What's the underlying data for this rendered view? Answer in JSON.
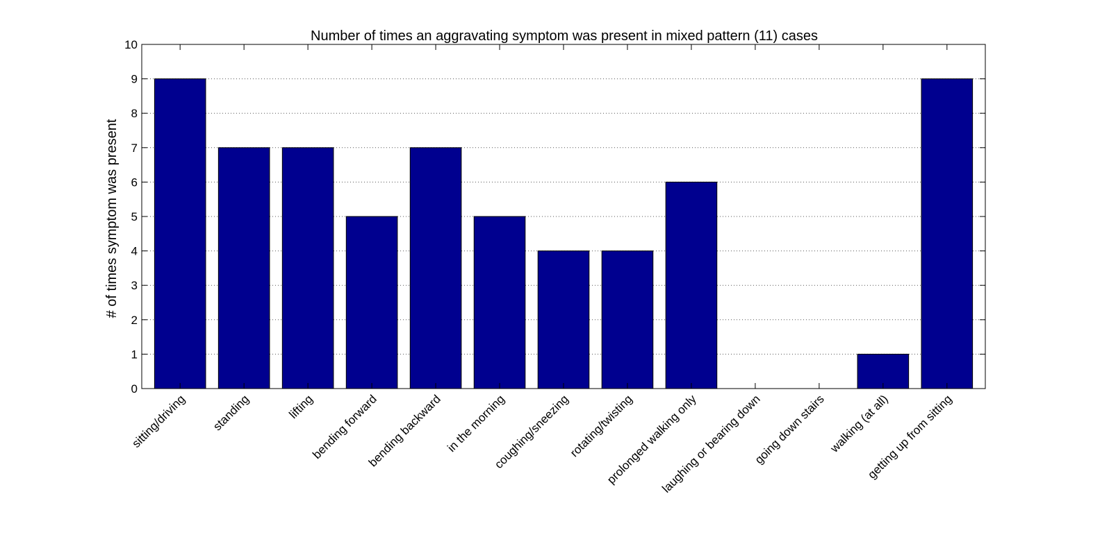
{
  "chart_data": {
    "type": "bar",
    "title": "Number of times an aggravating symptom was present in mixed pattern (11) cases",
    "xlabel": "",
    "ylabel": "# of times symptom was present",
    "categories": [
      "sitting/driving",
      "standing",
      "lifting",
      "bending forward",
      "bending backward",
      "in the morning",
      "coughing/sneezing",
      "rotating/twisting",
      "prolonged walking only",
      "laughing or bearing down",
      "going down stairs",
      "walking (at all)",
      "getting up from sitting"
    ],
    "values": [
      9,
      7,
      7,
      5,
      7,
      5,
      4,
      4,
      6,
      0,
      0,
      1,
      9
    ],
    "ylim": [
      0,
      10
    ],
    "yticks": [
      0,
      1,
      2,
      3,
      4,
      5,
      6,
      7,
      8,
      9,
      10
    ],
    "grid": "horizontal-dotted",
    "bar_color": "#00008F",
    "axis_color": "#000000",
    "grid_color": "#555555"
  }
}
